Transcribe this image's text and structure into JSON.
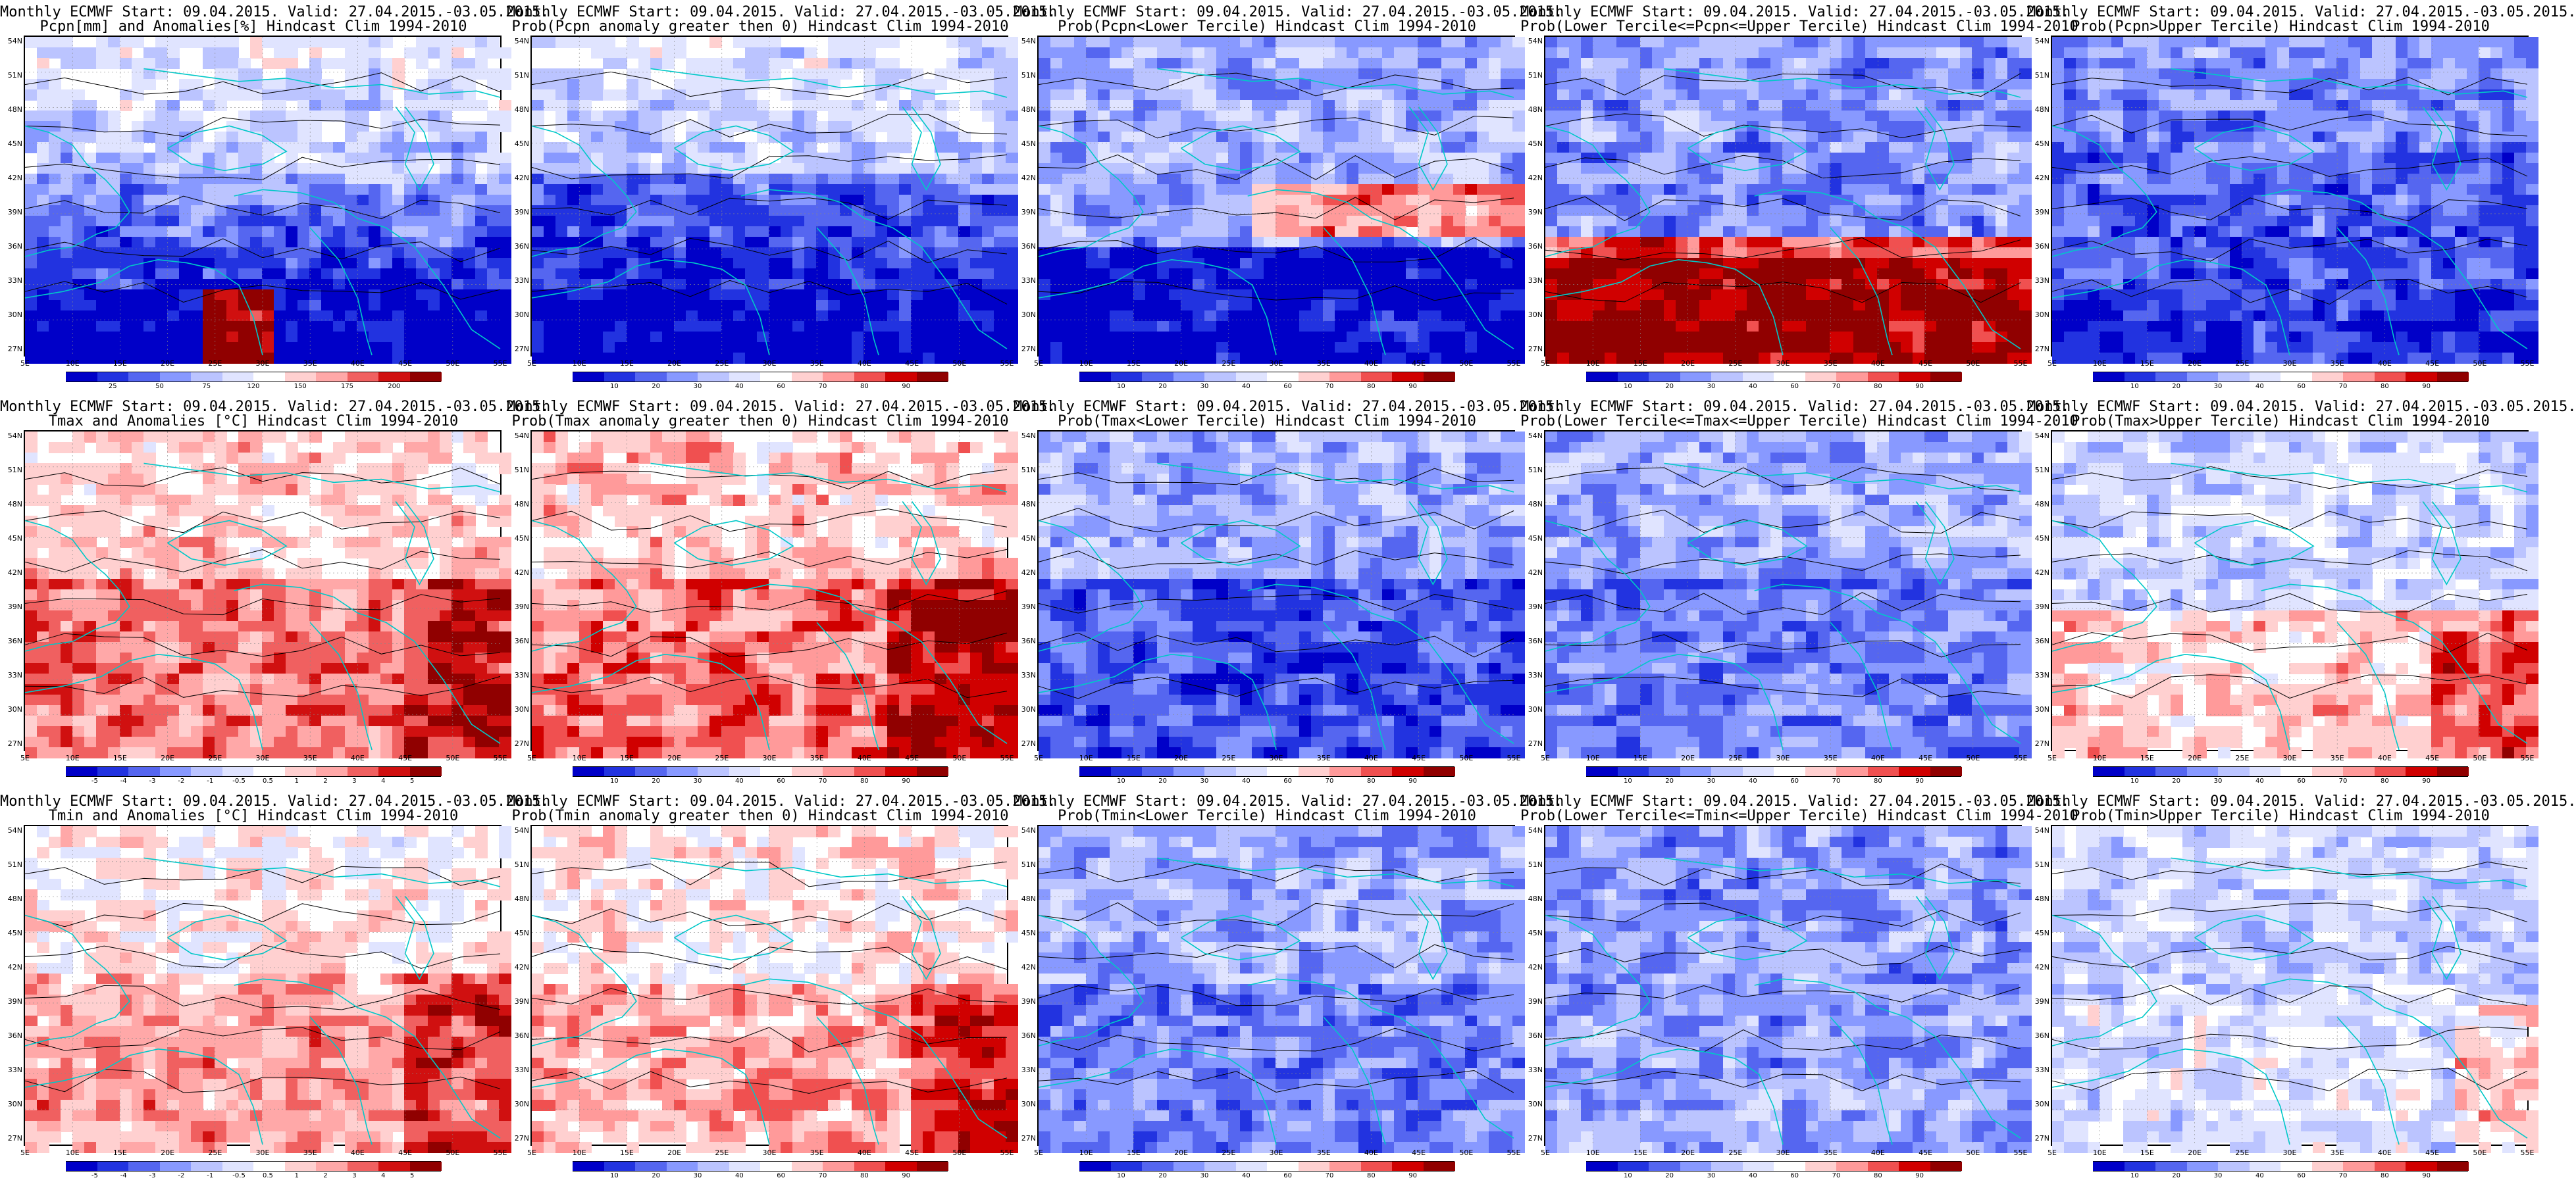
{
  "lat_labels": [
    "54N",
    "51N",
    "48N",
    "45N",
    "42N",
    "39N",
    "36N",
    "33N",
    "30N",
    "27N"
  ],
  "lon_labels": [
    "5E",
    "10E",
    "15E",
    "20E",
    "25E",
    "30E",
    "35E",
    "40E",
    "45E",
    "50E",
    "55E"
  ],
  "rows": [
    {
      "variable": "Pcpn",
      "panels": [
        {
          "title_line1": "Monthly ECMWF Start: 09.04.2015. Valid: 27.04.2015.-03.05.2015.",
          "title_line2": "Pcpn[mm] and Anomalies[%] Hindcast Clim 1994-2010",
          "scale": "anomaly-pcpn",
          "colorbar_ticks": [
            "25",
            "50",
            "75",
            "120",
            "150",
            "175",
            "200"
          ],
          "pattern": "pcpn-anom"
        },
        {
          "title_line1": "Monthly ECMWF Start: 09.04.2015. Valid: 27.04.2015.-03.05.2015.",
          "title_line2": "Prob(Pcpn anomaly greater then 0) Hindcast Clim 1994-2010",
          "scale": "prob",
          "colorbar_ticks": [
            "10",
            "20",
            "30",
            "40",
            "60",
            "70",
            "80",
            "90"
          ],
          "pattern": "pcpn-gt0"
        },
        {
          "title_line1": "Monthly ECMWF Start: 09.04.2015. Valid: 27.04.2015.-03.05.2015.",
          "title_line2": "Prob(Pcpn<Lower Tercile) Hindcast Clim 1994-2010",
          "scale": "prob",
          "colorbar_ticks": [
            "10",
            "20",
            "30",
            "40",
            "60",
            "70",
            "80",
            "90"
          ],
          "pattern": "pcpn-lower"
        },
        {
          "title_line1": "Monthly ECMWF Start: 09.04.2015. Valid: 27.04.2015.-03.05.2015.",
          "title_line2": "Prob(Lower Tercile<=Pcpn<=Upper Tercile) Hindcast Clim 1994-2010",
          "scale": "prob",
          "colorbar_ticks": [
            "10",
            "20",
            "30",
            "40",
            "60",
            "70",
            "80",
            "90"
          ],
          "pattern": "pcpn-middle"
        },
        {
          "title_line1": "Monthly ECMWF Start: 09.04.2015. Valid: 27.04.2015.-03.05.2015.",
          "title_line2": "Prob(Pcpn>Upper Tercile) Hindcast Clim 1994-2010",
          "scale": "prob",
          "colorbar_ticks": [
            "10",
            "20",
            "30",
            "40",
            "60",
            "70",
            "80",
            "90"
          ],
          "pattern": "pcpn-upper"
        }
      ]
    },
    {
      "variable": "Tmax",
      "panels": [
        {
          "title_line1": "Monthly ECMWF Start: 09.04.2015. Valid: 27.04.2015.-03.05.2015.",
          "title_line2": "Tmax and Anomalies [°C] Hindcast Clim 1994-2010",
          "scale": "anomaly-temp",
          "colorbar_ticks": [
            "-5",
            "-4",
            "-3",
            "-2",
            "-1",
            "-0.5",
            "0.5",
            "1",
            "2",
            "3",
            "4",
            "5"
          ],
          "pattern": "tmax-anom"
        },
        {
          "title_line1": "Monthly ECMWF Start: 09.04.2015. Valid: 27.04.2015.-03.05.2015.",
          "title_line2": "Prob(Tmax anomaly greater then 0) Hindcast Clim 1994-2010",
          "scale": "prob",
          "colorbar_ticks": [
            "10",
            "20",
            "30",
            "40",
            "60",
            "70",
            "80",
            "90"
          ],
          "pattern": "tmax-gt0"
        },
        {
          "title_line1": "Monthly ECMWF Start: 09.04.2015. Valid: 27.04.2015.-03.05.2015.",
          "title_line2": "Prob(Tmax<Lower Tercile) Hindcast Clim 1994-2010",
          "scale": "prob",
          "colorbar_ticks": [
            "10",
            "20",
            "30",
            "40",
            "60",
            "70",
            "80",
            "90"
          ],
          "pattern": "tmax-lower"
        },
        {
          "title_line1": "Monthly ECMWF Start: 09.04.2015. Valid: 27.04.2015.-03.05.2015.",
          "title_line2": "Prob(Lower Tercile<=Tmax<=Upper Tercile) Hindcast Clim 1994-2010",
          "scale": "prob",
          "colorbar_ticks": [
            "10",
            "20",
            "30",
            "40",
            "60",
            "70",
            "80",
            "90"
          ],
          "pattern": "tmax-middle"
        },
        {
          "title_line1": "Monthly ECMWF Start: 09.04.2015. Valid: 27.04.2015.-03.05.2015.",
          "title_line2": "Prob(Tmax>Upper Tercile) Hindcast Clim 1994-2010",
          "scale": "prob",
          "colorbar_ticks": [
            "10",
            "20",
            "30",
            "40",
            "60",
            "70",
            "80",
            "90"
          ],
          "pattern": "tmax-upper"
        }
      ]
    },
    {
      "variable": "Tmin",
      "panels": [
        {
          "title_line1": "Monthly ECMWF Start: 09.04.2015. Valid: 27.04.2015.-03.05.2015.",
          "title_line2": "Tmin and Anomalies [°C] Hindcast Clim 1994-2010",
          "scale": "anomaly-temp",
          "colorbar_ticks": [
            "-5",
            "-4",
            "-3",
            "-2",
            "-1",
            "-0.5",
            "0.5",
            "1",
            "2",
            "3",
            "4",
            "5"
          ],
          "pattern": "tmin-anom"
        },
        {
          "title_line1": "Monthly ECMWF Start: 09.04.2015. Valid: 27.04.2015.-03.05.2015.",
          "title_line2": "Prob(Tmin anomaly greater then 0) Hindcast Clim 1994-2010",
          "scale": "prob",
          "colorbar_ticks": [
            "10",
            "20",
            "30",
            "40",
            "60",
            "70",
            "80",
            "90"
          ],
          "pattern": "tmin-gt0"
        },
        {
          "title_line1": "Monthly ECMWF Start: 09.04.2015. Valid: 27.04.2015.-03.05.2015.",
          "title_line2": "Prob(Tmin<Lower Tercile) Hindcast Clim 1994-2010",
          "scale": "prob",
          "colorbar_ticks": [
            "10",
            "20",
            "30",
            "40",
            "60",
            "70",
            "80",
            "90"
          ],
          "pattern": "tmin-lower"
        },
        {
          "title_line1": "Monthly ECMWF Start: 09.04.2015. Valid: 27.04.2015.-03.05.2015.",
          "title_line2": "Prob(Lower Tercile<=Tmin<=Upper Tercile) Hindcast Clim 1994-2010",
          "scale": "prob",
          "colorbar_ticks": [
            "10",
            "20",
            "30",
            "40",
            "60",
            "70",
            "80",
            "90"
          ],
          "pattern": "tmin-middle"
        },
        {
          "title_line1": "Monthly ECMWF Start: 09.04.2015. Valid: 27.04.2015.-03.05.2015.",
          "title_line2": "Prob(Tmin>Upper Tercile) Hindcast Clim 1994-2010",
          "scale": "prob",
          "colorbar_ticks": [
            "10",
            "20",
            "30",
            "40",
            "60",
            "70",
            "80",
            "90"
          ],
          "pattern": "tmin-upper"
        }
      ]
    }
  ],
  "colors": {
    "scale_prob": [
      "#0000c8",
      "#2233e0",
      "#5566f0",
      "#8899ff",
      "#bbc4ff",
      "#e0e4ff",
      "#ffffff",
      "#ffd0d0",
      "#ff9a9a",
      "#f05050",
      "#d00000",
      "#900000"
    ],
    "scale_anomaly": [
      "#0000c8",
      "#2233e0",
      "#5566f0",
      "#8899ff",
      "#bbc4ff",
      "#e0e4ff",
      "#ffffff",
      "#ffd0d0",
      "#ffa8a8",
      "#f06060",
      "#d01010",
      "#900000"
    ],
    "coastline": "#00c8c8",
    "contour": "#000000"
  }
}
